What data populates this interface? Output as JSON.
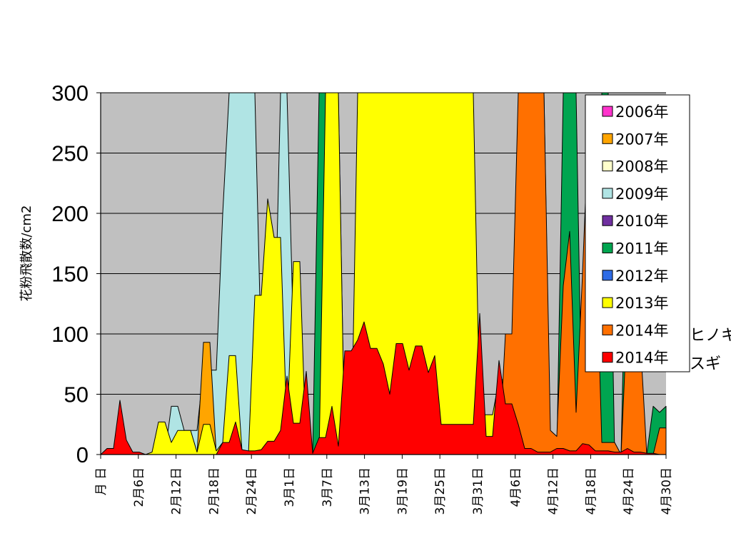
{
  "chart_data": {
    "type": "area",
    "ylabel": "花粉飛散数/cm2",
    "ylim": [
      0,
      300
    ],
    "yticks": [
      "0",
      "50",
      "100",
      "150",
      "200",
      "250",
      "300"
    ],
    "grid": true,
    "legend_position": "right",
    "x_tick_labels": [
      "月 日",
      "2月6日",
      "2月12日",
      "2月18日",
      "2月24日",
      "3月1日",
      "3月7日",
      "3月13日",
      "3月19日",
      "3月25日",
      "3月31日",
      "4月6日",
      "4月12日",
      "4月18日",
      "4月24日",
      "4月30日"
    ],
    "side_labels": [
      "ヒノキ",
      "スギ"
    ],
    "colors": {
      "plot_background": "#C0C0C0",
      "2006": "#FF33CC",
      "2007": "#FFA500",
      "2008": "#FFFFCC",
      "2009": "#B0E4E4",
      "2010": "#7030A0",
      "2011": "#00A550",
      "2012": "#2E6BE6",
      "2013": "#FFFF00",
      "2014_hinoki": "#FF7000",
      "2014_sugi": "#FF0000"
    },
    "series": [
      {
        "name": "2009年",
        "values": [
          0,
          0,
          0,
          0,
          0,
          0,
          0,
          0,
          0,
          0,
          0,
          40,
          40,
          20,
          20,
          20,
          70,
          70,
          70,
          200,
          300,
          300,
          300,
          300,
          300,
          80,
          70,
          70,
          300,
          300,
          100,
          0,
          0,
          0,
          0,
          0,
          0,
          0,
          0,
          0,
          0,
          0,
          0,
          0,
          0,
          0,
          0,
          0,
          0,
          0,
          0,
          0,
          0,
          0,
          0,
          0,
          0,
          0,
          0,
          0,
          0,
          0,
          0,
          0,
          0,
          0,
          0,
          0,
          0,
          0,
          0,
          0,
          0,
          0,
          0,
          0,
          0,
          0,
          0,
          0,
          0,
          0,
          0,
          0,
          0,
          0,
          0,
          0,
          0
        ]
      },
      {
        "name": "2007年",
        "values": [
          0,
          0,
          0,
          0,
          0,
          0,
          0,
          0,
          0,
          0,
          0,
          0,
          0,
          0,
          0,
          0,
          93,
          93,
          0,
          0,
          0,
          0,
          0,
          0,
          0,
          0,
          0,
          0,
          0,
          0,
          0,
          0,
          0,
          0,
          0,
          0,
          0,
          0,
          0,
          0,
          0,
          0,
          0,
          0,
          0,
          0,
          0,
          0,
          0,
          0,
          0,
          0,
          0,
          0,
          0,
          0,
          0,
          0,
          0,
          0,
          0,
          0,
          0,
          0,
          0,
          0,
          0,
          0,
          0,
          0,
          0,
          0,
          0,
          0,
          0,
          0,
          0,
          0,
          0,
          0,
          0,
          0,
          0,
          0,
          0,
          0,
          0,
          0,
          0
        ]
      },
      {
        "name": "2011年",
        "values": [
          0,
          0,
          0,
          0,
          0,
          0,
          0,
          0,
          0,
          0,
          0,
          0,
          0,
          0,
          0,
          0,
          0,
          0,
          0,
          0,
          0,
          0,
          0,
          0,
          0,
          0,
          0,
          0,
          0,
          0,
          0,
          0,
          0,
          0,
          300,
          300,
          100,
          300,
          0,
          0,
          0,
          0,
          275,
          190,
          0,
          0,
          0,
          0,
          0,
          0,
          0,
          0,
          300,
          0,
          0,
          300,
          0,
          0,
          0,
          0,
          0,
          0,
          0,
          0,
          0,
          0,
          0,
          0,
          300,
          300,
          0,
          0,
          300,
          300,
          300,
          0,
          0,
          0,
          300,
          300,
          0,
          0,
          243,
          243,
          0,
          0,
          40,
          35,
          40
        ]
      },
      {
        "name": "2012年",
        "values": [
          0,
          0,
          0,
          0,
          0,
          0,
          0,
          0,
          0,
          0,
          0,
          0,
          0,
          0,
          0,
          0,
          0,
          0,
          0,
          0,
          0,
          0,
          0,
          0,
          0,
          0,
          0,
          0,
          0,
          0,
          0,
          0,
          0,
          0,
          0,
          0,
          0,
          0,
          0,
          0,
          0,
          0,
          0,
          0,
          0,
          0,
          0,
          0,
          0,
          0,
          0,
          0,
          0,
          0,
          0,
          0,
          0,
          0,
          0,
          0,
          0,
          0,
          0,
          0,
          0,
          0,
          0,
          0,
          0,
          0,
          0,
          0,
          0,
          0,
          0,
          0,
          0,
          67,
          0,
          0,
          0,
          0,
          0,
          0,
          0,
          0,
          0,
          0,
          10
        ]
      },
      {
        "name": "2013年",
        "values": [
          0,
          0,
          0,
          0,
          0,
          0,
          0,
          0,
          2,
          27,
          27,
          10,
          20,
          20,
          20,
          2,
          25,
          25,
          3,
          10,
          82,
          82,
          3,
          0,
          132,
          132,
          212,
          180,
          180,
          20,
          160,
          160,
          0,
          0,
          0,
          300,
          300,
          300,
          0,
          0,
          300,
          300,
          300,
          300,
          300,
          300,
          300,
          300,
          300,
          300,
          300,
          300,
          300,
          300,
          300,
          300,
          300,
          300,
          300,
          33,
          33,
          33,
          62,
          62,
          0,
          48,
          48,
          0,
          0,
          0,
          0,
          0,
          0,
          0,
          0,
          0,
          0,
          0,
          0,
          0,
          0,
          0,
          0,
          0,
          45,
          0,
          0,
          0,
          0
        ]
      },
      {
        "name": "2014年 (ヒノキ)",
        "values": [
          0,
          0,
          0,
          0,
          0,
          0,
          0,
          0,
          0,
          0,
          0,
          0,
          0,
          0,
          0,
          0,
          0,
          0,
          0,
          0,
          0,
          0,
          0,
          0,
          0,
          0,
          0,
          0,
          0,
          0,
          0,
          0,
          0,
          0,
          0,
          0,
          0,
          0,
          0,
          0,
          0,
          0,
          0,
          0,
          0,
          0,
          0,
          0,
          0,
          0,
          0,
          0,
          0,
          0,
          0,
          0,
          0,
          0,
          0,
          0,
          0,
          0,
          0,
          100,
          100,
          300,
          300,
          300,
          300,
          300,
          20,
          15,
          140,
          185,
          35,
          150,
          282,
          200,
          10,
          10,
          10,
          0,
          120,
          95,
          95,
          0,
          0,
          22,
          22
        ]
      },
      {
        "name": "2014年 (スギ)",
        "values": [
          0,
          5,
          5,
          45,
          12,
          2,
          2,
          0,
          0,
          0,
          0,
          0,
          0,
          0,
          0,
          0,
          0,
          0,
          0,
          10,
          10,
          27,
          4,
          3,
          3,
          4,
          11,
          11,
          20,
          65,
          26,
          26,
          69,
          1,
          14,
          14,
          40,
          7,
          86,
          86,
          95,
          110,
          88,
          88,
          75,
          50,
          92,
          92,
          70,
          90,
          90,
          68,
          82,
          25,
          25,
          25,
          25,
          25,
          25,
          117,
          15,
          15,
          78,
          42,
          42,
          25,
          5,
          5,
          2,
          2,
          2,
          5,
          5,
          3,
          3,
          9,
          8,
          3,
          3,
          3,
          2,
          2,
          5,
          2,
          2,
          1,
          1,
          0,
          0
        ]
      }
    ],
    "legend": [
      "2006年",
      "2007年",
      "2008年",
      "2009年",
      "2010年",
      "2011年",
      "2012年",
      "2013年",
      "2014年",
      "2014年"
    ]
  }
}
